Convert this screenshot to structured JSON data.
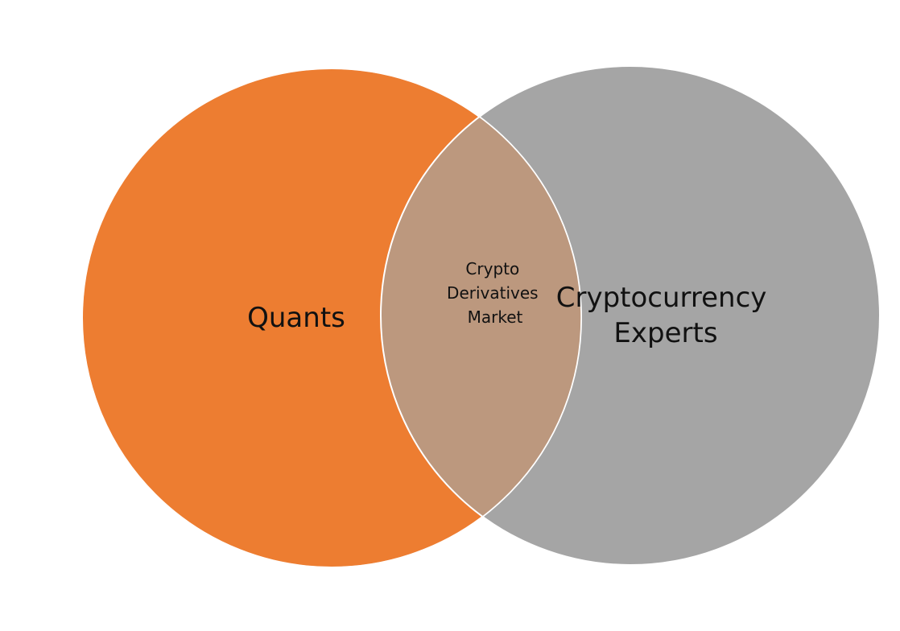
{
  "diagram": {
    "type": "venn",
    "sets": [
      {
        "id": "left",
        "label": "Quants",
        "color": "#ED7D31"
      },
      {
        "id": "right",
        "label_lines": [
          "Cryptocurrency",
          "Experts"
        ],
        "color": "#A5A5A5"
      }
    ],
    "intersection": {
      "label_lines": [
        "Crypto",
        "Derivatives",
        "Market"
      ],
      "color": "#BC987E"
    },
    "outline_color": "#FFFFFF"
  }
}
